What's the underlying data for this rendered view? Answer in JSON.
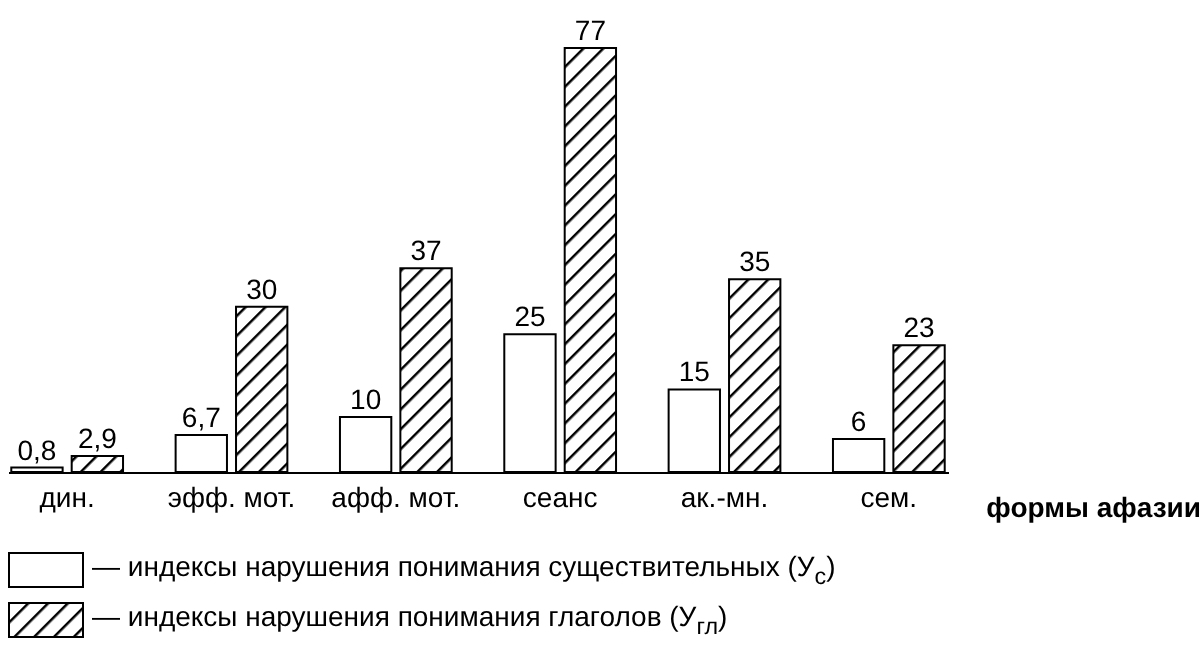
{
  "chart_data": {
    "type": "bar",
    "xlabel": "формы афазии",
    "categories": [
      "дин.",
      "эфф. мот.",
      "афф. мот.",
      "сеанс",
      "ак.-мн.",
      "сем."
    ],
    "series": [
      {
        "name": "— индексы нарушения понимания существительных (У$_{с}$)",
        "color": "#ffffff",
        "values": [
          0.8,
          6.7,
          10,
          25,
          15,
          6
        ],
        "value_labels": [
          "0,8",
          "6,7",
          "10",
          "25",
          "15",
          "6"
        ]
      },
      {
        "name": "— индексы нарушения понимания глаголов (У$_{гл}$)",
        "color": "#000000",
        "values": [
          2.9,
          30,
          37,
          77,
          35,
          23
        ],
        "value_labels": [
          "2,9",
          "30",
          "37",
          "77",
          "35",
          "23"
        ]
      }
    ],
    "legend": "bottom",
    "grid": false
  }
}
